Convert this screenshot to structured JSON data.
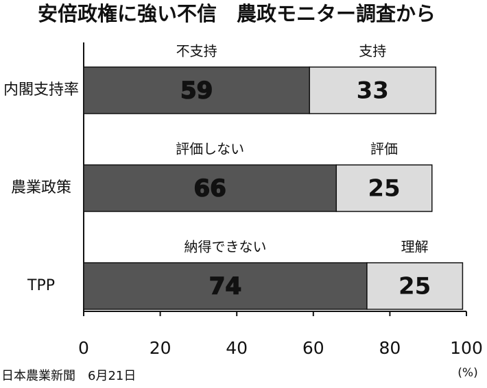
{
  "chart_data": {
    "type": "stacked-bar-horizontal",
    "title": "安倍政権に強い不信　農政モニター調査から",
    "categories": [
      "内閣支持率",
      "農業政策",
      "TPP"
    ],
    "series": [
      {
        "color": "#555555",
        "labels": [
          "不支持",
          "評価しない",
          "納得できない"
        ],
        "values": [
          59,
          66,
          74
        ]
      },
      {
        "color": "#dcdcdc",
        "labels": [
          "支持",
          "評価",
          "理解"
        ],
        "values": [
          33,
          25,
          25
        ]
      }
    ],
    "xlim": [
      0,
      100
    ],
    "xticks": [
      0,
      20,
      40,
      60,
      80,
      100
    ],
    "x_unit": "(%)",
    "source": "日本農業新聞　6月21日"
  }
}
